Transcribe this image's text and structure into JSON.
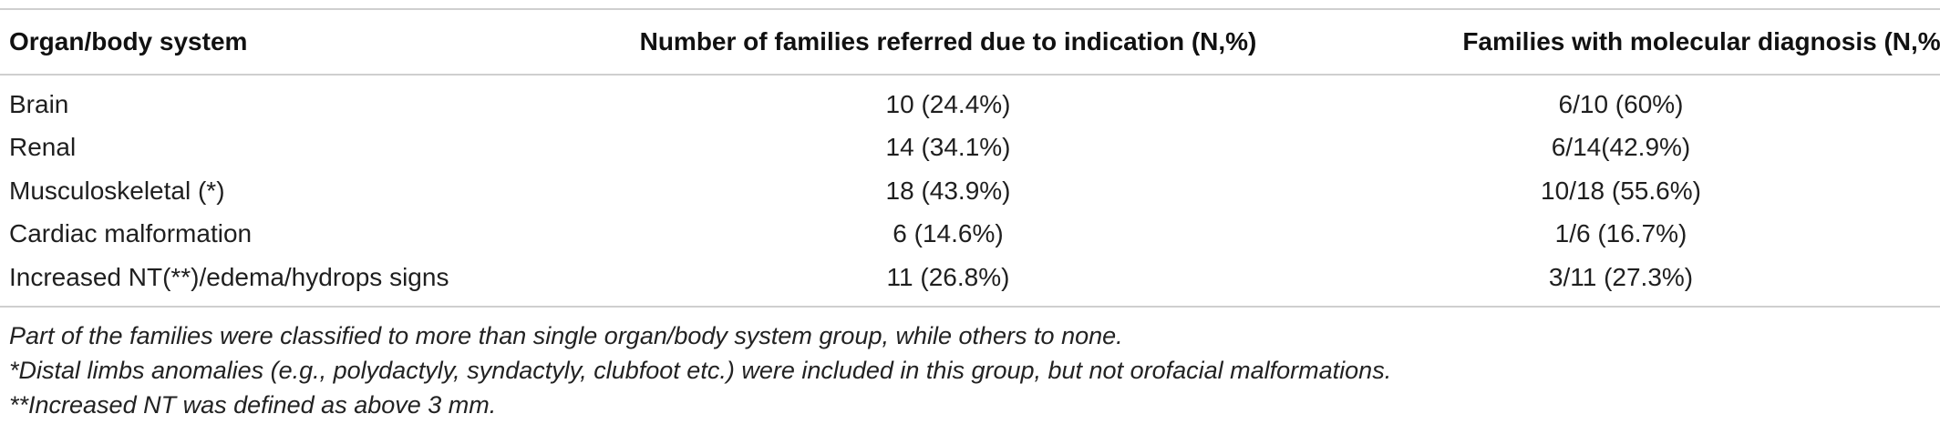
{
  "table": {
    "headers": [
      "Organ/body system",
      "Number of families referred due to indication (N,%)",
      "Families with molecular diagnosis (N,%)"
    ],
    "rows": [
      [
        "Brain",
        "10 (24.4%)",
        "6/10 (60%)"
      ],
      [
        "Renal",
        "14 (34.1%)",
        "6/14(42.9%)"
      ],
      [
        "Musculoskeletal (*)",
        "18 (43.9%)",
        "10/18 (55.6%)"
      ],
      [
        "Cardiac malformation",
        "6 (14.6%)",
        "1/6 (16.7%)"
      ],
      [
        "Increased NT(**)/edema/hydrops signs",
        "11 (26.8%)",
        "3/11 (27.3%)"
      ]
    ]
  },
  "footnotes": [
    "Part of the families were classified to more than single organ/body system group, while others to none.",
    "*Distal limbs anomalies (e.g., polydactyly, syndactyly, clubfoot etc.) were included in this group, but not orofacial malformations.",
    "**Increased NT was defined as above 3 mm."
  ]
}
